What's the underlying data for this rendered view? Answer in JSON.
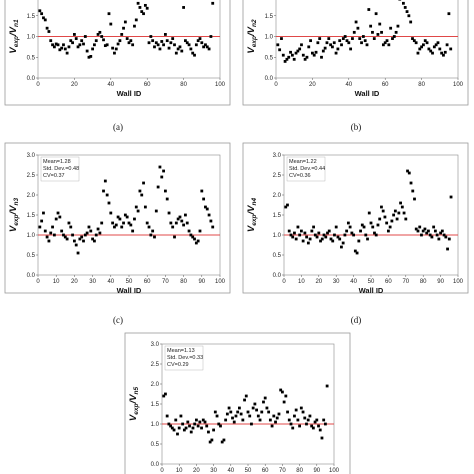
{
  "chart_data": [
    {
      "type": "scatter",
      "caption": "(a)",
      "xlabel": "Wall ID",
      "ylabel_main": "V",
      "ylabel_num_sub": "exp",
      "ylabel_den": "/V",
      "ylabel_den_sub": "n1",
      "stats": [],
      "xlim": [
        0,
        100
      ],
      "ylim": [
        0,
        2.0
      ],
      "xticks": [
        0,
        20,
        40,
        60,
        80,
        100
      ],
      "yticks": [
        0,
        0.5,
        1.0,
        1.5,
        2.0
      ],
      "ytick_labels": [
        "0.0",
        "0.5",
        "1.0",
        "1.5",
        "2.0"
      ],
      "reference_line": 1.0,
      "reference_color": "#e04848",
      "point_color": "#000000",
      "x": [
        1,
        2,
        3,
        4,
        5,
        6,
        7,
        8,
        9,
        10,
        11,
        12,
        13,
        14,
        15,
        16,
        17,
        18,
        19,
        20,
        21,
        22,
        23,
        24,
        25,
        26,
        27,
        28,
        29,
        30,
        31,
        32,
        33,
        34,
        35,
        36,
        37,
        38,
        39,
        40,
        41,
        42,
        43,
        44,
        45,
        46,
        47,
        48,
        49,
        50,
        51,
        52,
        53,
        54,
        55,
        56,
        57,
        58,
        59,
        60,
        61,
        62,
        63,
        64,
        65,
        66,
        67,
        68,
        69,
        70,
        71,
        72,
        73,
        74,
        75,
        76,
        77,
        78,
        79,
        80,
        81,
        82,
        83,
        84,
        85,
        86,
        87,
        88,
        89,
        90,
        91,
        92,
        93,
        94,
        95,
        96
      ],
      "y": [
        1.62,
        1.55,
        1.45,
        1.4,
        1.2,
        1.12,
        0.9,
        0.8,
        0.75,
        0.82,
        0.8,
        0.68,
        0.72,
        0.8,
        0.7,
        0.6,
        0.75,
        0.9,
        0.85,
        1.05,
        0.95,
        0.75,
        0.8,
        0.9,
        0.82,
        1.0,
        0.65,
        0.5,
        0.52,
        0.7,
        0.8,
        0.9,
        1.05,
        1.1,
        1.0,
        0.92,
        0.78,
        0.8,
        1.55,
        1.3,
        0.72,
        0.6,
        0.7,
        0.82,
        0.9,
        1.05,
        1.2,
        1.35,
        0.95,
        0.85,
        0.9,
        0.8,
        1.25,
        1.4,
        1.8,
        1.7,
        1.6,
        1.55,
        1.75,
        1.68,
        0.85,
        1.0,
        0.9,
        0.75,
        0.85,
        0.8,
        0.7,
        0.88,
        0.8,
        1.05,
        0.9,
        0.72,
        0.85,
        0.95,
        0.8,
        0.6,
        0.7,
        0.75,
        0.65,
        1.7,
        0.9,
        0.85,
        0.8,
        0.7,
        0.6,
        0.55,
        0.8,
        0.9,
        0.95,
        0.85,
        0.75,
        0.8,
        0.75,
        0.7,
        1.0,
        1.8
      ]
    },
    {
      "type": "scatter",
      "caption": "(b)",
      "xlabel": "Wall ID",
      "ylabel_main": "V",
      "ylabel_num_sub": "exp",
      "ylabel_den": "/V",
      "ylabel_den_sub": "n2",
      "stats": [],
      "xlim": [
        0,
        100
      ],
      "ylim": [
        0,
        2.0
      ],
      "xticks": [
        0,
        20,
        40,
        60,
        80,
        100
      ],
      "yticks": [
        0,
        0.5,
        1.0,
        1.5,
        2.0
      ],
      "ytick_labels": [
        "0.0",
        "0.5",
        "1.0",
        "1.5",
        "2.0"
      ],
      "reference_line": 1.0,
      "reference_color": "#e04848",
      "point_color": "#000000",
      "x": [
        1,
        2,
        3,
        4,
        5,
        6,
        7,
        8,
        9,
        10,
        11,
        12,
        13,
        14,
        15,
        16,
        17,
        18,
        19,
        20,
        21,
        22,
        23,
        24,
        25,
        26,
        27,
        28,
        29,
        30,
        31,
        32,
        33,
        34,
        35,
        36,
        37,
        38,
        39,
        40,
        41,
        42,
        43,
        44,
        45,
        46,
        47,
        48,
        49,
        50,
        51,
        52,
        53,
        54,
        55,
        56,
        57,
        58,
        59,
        60,
        61,
        62,
        63,
        64,
        65,
        66,
        67,
        68,
        69,
        70,
        71,
        72,
        73,
        74,
        75,
        76,
        77,
        78,
        79,
        80,
        81,
        82,
        83,
        84,
        85,
        86,
        87,
        88,
        89,
        90,
        91,
        92,
        93,
        94,
        95,
        96
      ],
      "y": [
        0.8,
        0.68,
        0.95,
        0.55,
        0.4,
        0.45,
        0.5,
        0.62,
        0.55,
        0.45,
        0.6,
        0.65,
        0.7,
        0.8,
        0.55,
        0.45,
        0.5,
        0.75,
        0.9,
        0.6,
        0.55,
        0.62,
        0.85,
        0.95,
        0.5,
        0.65,
        0.72,
        0.85,
        0.95,
        0.8,
        0.75,
        0.85,
        0.6,
        0.7,
        0.9,
        0.8,
        0.95,
        1.0,
        0.9,
        0.85,
        0.7,
        0.95,
        1.1,
        1.35,
        1.2,
        0.95,
        0.85,
        1.0,
        0.9,
        0.8,
        1.65,
        1.25,
        1.1,
        0.95,
        1.55,
        1.05,
        1.3,
        1.1,
        0.8,
        0.85,
        0.9,
        0.8,
        1.2,
        0.95,
        1.0,
        1.1,
        1.25,
        1.9,
        2.0,
        1.8,
        1.7,
        1.6,
        1.5,
        1.35,
        0.95,
        0.9,
        0.85,
        0.6,
        0.7,
        0.75,
        0.8,
        0.9,
        0.85,
        0.7,
        0.65,
        0.6,
        0.75,
        0.8,
        0.85,
        0.7,
        0.6,
        0.55,
        0.62,
        0.8,
        1.55,
        0.7
      ]
    },
    {
      "type": "scatter",
      "caption": "(c)",
      "xlabel": "Wall ID",
      "ylabel_main": "V",
      "ylabel_num_sub": "exp",
      "ylabel_den": "/V",
      "ylabel_den_sub": "n3",
      "stats": [
        "Mean=1.28",
        "Std. Dev.=0.48",
        "CV=0.37"
      ],
      "xlim": [
        0,
        100
      ],
      "ylim": [
        0,
        3.0
      ],
      "xticks": [
        0,
        10,
        20,
        30,
        40,
        50,
        60,
        70,
        80,
        90,
        100
      ],
      "yticks": [
        0,
        0.5,
        1.0,
        1.5,
        2.0,
        2.5,
        3.0
      ],
      "ytick_labels": [
        "0.0",
        "0.5",
        "1.0",
        "1.5",
        "2.0",
        "2.5",
        "3.0"
      ],
      "reference_line": 1.0,
      "reference_color": "#e04848",
      "point_color": "#000000",
      "x": [
        1,
        2,
        3,
        4,
        5,
        6,
        7,
        8,
        9,
        10,
        11,
        12,
        13,
        14,
        15,
        16,
        17,
        18,
        19,
        20,
        21,
        22,
        23,
        24,
        25,
        26,
        27,
        28,
        29,
        30,
        31,
        32,
        33,
        34,
        35,
        36,
        37,
        38,
        39,
        40,
        41,
        42,
        43,
        44,
        45,
        46,
        47,
        48,
        49,
        50,
        51,
        52,
        53,
        54,
        55,
        56,
        57,
        58,
        59,
        60,
        61,
        62,
        63,
        64,
        65,
        66,
        67,
        68,
        69,
        70,
        71,
        72,
        73,
        74,
        75,
        76,
        77,
        78,
        79,
        80,
        81,
        82,
        83,
        84,
        85,
        86,
        87,
        88,
        89,
        90,
        91,
        92,
        93,
        94,
        95,
        96
      ],
      "y": [
        1.2,
        1.35,
        1.55,
        1.1,
        0.95,
        0.85,
        1.05,
        1.2,
        1.0,
        1.4,
        1.55,
        1.45,
        1.1,
        1.0,
        0.95,
        0.9,
        1.3,
        1.2,
        1.0,
        0.85,
        0.75,
        0.55,
        0.9,
        0.95,
        0.85,
        1.0,
        1.05,
        1.2,
        1.1,
        0.9,
        0.85,
        1.0,
        1.15,
        1.05,
        1.3,
        2.1,
        2.35,
        2.0,
        1.8,
        1.55,
        1.3,
        1.2,
        1.25,
        1.45,
        1.4,
        1.2,
        1.3,
        1.5,
        1.45,
        1.3,
        1.25,
        1.1,
        1.4,
        1.7,
        1.6,
        2.1,
        2.0,
        2.3,
        1.7,
        1.3,
        1.2,
        1.0,
        1.1,
        0.95,
        1.6,
        2.2,
        2.7,
        2.45,
        2.6,
        2.1,
        1.9,
        1.55,
        1.3,
        1.2,
        0.95,
        1.3,
        1.4,
        1.45,
        1.35,
        1.25,
        1.5,
        1.3,
        1.1,
        1.0,
        0.95,
        0.9,
        0.8,
        0.85,
        1.1,
        2.1,
        1.9,
        1.7,
        1.65,
        1.5,
        1.35,
        1.2
      ]
    },
    {
      "type": "scatter",
      "caption": "(d)",
      "xlabel": "Wall ID",
      "ylabel_main": "V",
      "ylabel_num_sub": "exp",
      "ylabel_den": "/V",
      "ylabel_den_sub": "n4",
      "stats": [
        "Mean=1.22",
        "Std. Dev.=0.44",
        "CV=0.36"
      ],
      "xlim": [
        0,
        100
      ],
      "ylim": [
        0,
        3.0
      ],
      "xticks": [
        0,
        10,
        20,
        30,
        40,
        50,
        60,
        70,
        80,
        90,
        100
      ],
      "yticks": [
        0,
        0.5,
        1.0,
        1.5,
        2.0,
        2.5,
        3.0
      ],
      "ytick_labels": [
        "0.0",
        "0.5",
        "1.0",
        "1.5",
        "2.0",
        "2.5",
        "3.0"
      ],
      "reference_line": 1.0,
      "reference_color": "#e04848",
      "point_color": "#000000",
      "x": [
        1,
        2,
        3,
        4,
        5,
        6,
        7,
        8,
        9,
        10,
        11,
        12,
        13,
        14,
        15,
        16,
        17,
        18,
        19,
        20,
        21,
        22,
        23,
        24,
        25,
        26,
        27,
        28,
        29,
        30,
        31,
        32,
        33,
        34,
        35,
        36,
        37,
        38,
        39,
        40,
        41,
        42,
        43,
        44,
        45,
        46,
        47,
        48,
        49,
        50,
        51,
        52,
        53,
        54,
        55,
        56,
        57,
        58,
        59,
        60,
        61,
        62,
        63,
        64,
        65,
        66,
        67,
        68,
        69,
        70,
        71,
        72,
        73,
        74,
        75,
        76,
        77,
        78,
        79,
        80,
        81,
        82,
        83,
        84,
        85,
        86,
        87,
        88,
        89,
        90,
        91,
        92,
        93,
        94,
        95,
        96
      ],
      "y": [
        1.7,
        1.75,
        1.1,
        1.0,
        0.95,
        1.05,
        0.9,
        1.2,
        1.0,
        1.1,
        0.85,
        1.05,
        0.95,
        0.8,
        0.9,
        1.1,
        1.2,
        1.0,
        0.95,
        1.05,
        0.85,
        0.9,
        1.0,
        0.95,
        1.05,
        1.1,
        0.9,
        0.85,
        1.0,
        1.2,
        0.95,
        0.9,
        0.7,
        0.8,
        1.0,
        1.1,
        1.3,
        1.2,
        1.05,
        1.0,
        0.6,
        0.55,
        0.85,
        1.1,
        1.25,
        1.2,
        1.0,
        0.9,
        1.55,
        1.3,
        1.2,
        1.05,
        1.0,
        1.25,
        1.4,
        1.7,
        1.6,
        1.45,
        1.3,
        1.1,
        1.2,
        1.35,
        1.5,
        1.6,
        1.4,
        1.55,
        1.8,
        1.7,
        1.55,
        1.4,
        2.6,
        2.55,
        2.3,
        2.1,
        1.9,
        1.15,
        1.1,
        1.2,
        1.0,
        1.1,
        1.15,
        1.05,
        1.1,
        1.0,
        0.95,
        1.2,
        1.1,
        1.0,
        0.9,
        1.05,
        1.1,
        1.0,
        0.95,
        0.65,
        0.9,
        1.95
      ]
    },
    {
      "type": "scatter",
      "caption": "",
      "xlabel": "",
      "ylabel_main": "V",
      "ylabel_num_sub": "exp",
      "ylabel_den": "/V",
      "ylabel_den_sub": "n5",
      "stats": [
        "Mean=1.13",
        "Std. Dev.=0.33",
        "CV=0.29"
      ],
      "xlim": [
        0,
        100
      ],
      "ylim": [
        0,
        3.0
      ],
      "xticks": [
        0,
        10,
        20,
        30,
        40,
        50,
        60,
        70,
        80,
        90,
        100
      ],
      "yticks": [
        0,
        0.5,
        1.0,
        1.5,
        2.0,
        2.5,
        3.0
      ],
      "ytick_labels": [
        "0.0",
        "0.5",
        "1.0",
        "1.5",
        "2.0",
        "2.5",
        "3.0"
      ],
      "reference_line": 1.0,
      "reference_color": "#e04848",
      "point_color": "#000000",
      "x": [
        1,
        2,
        3,
        4,
        5,
        6,
        7,
        8,
        9,
        10,
        11,
        12,
        13,
        14,
        15,
        16,
        17,
        18,
        19,
        20,
        21,
        22,
        23,
        24,
        25,
        26,
        27,
        28,
        29,
        30,
        31,
        32,
        33,
        34,
        35,
        36,
        37,
        38,
        39,
        40,
        41,
        42,
        43,
        44,
        45,
        46,
        47,
        48,
        49,
        50,
        51,
        52,
        53,
        54,
        55,
        56,
        57,
        58,
        59,
        60,
        61,
        62,
        63,
        64,
        65,
        66,
        67,
        68,
        69,
        70,
        71,
        72,
        73,
        74,
        75,
        76,
        77,
        78,
        79,
        80,
        81,
        82,
        83,
        84,
        85,
        86,
        87,
        88,
        89,
        90,
        91,
        92,
        93,
        94,
        95,
        96
      ],
      "y": [
        1.7,
        1.75,
        1.2,
        1.0,
        0.95,
        0.9,
        0.85,
        1.1,
        0.75,
        0.9,
        1.2,
        1.0,
        0.85,
        0.9,
        1.05,
        0.95,
        0.8,
        0.9,
        1.0,
        1.1,
        0.95,
        1.05,
        0.9,
        1.1,
        1.05,
        0.95,
        0.8,
        0.55,
        0.6,
        0.85,
        1.3,
        1.2,
        1.0,
        0.95,
        0.55,
        0.6,
        1.1,
        1.25,
        1.4,
        1.3,
        1.15,
        1.05,
        1.2,
        1.3,
        1.4,
        1.25,
        1.1,
        1.6,
        1.7,
        1.3,
        1.2,
        1.0,
        1.4,
        1.5,
        1.35,
        1.2,
        1.1,
        1.3,
        1.55,
        1.65,
        1.4,
        1.3,
        1.1,
        0.95,
        1.2,
        1.05,
        1.15,
        1.25,
        1.85,
        1.8,
        1.55,
        1.7,
        1.3,
        1.1,
        1.0,
        0.9,
        1.2,
        1.35,
        1.1,
        0.95,
        1.4,
        1.3,
        1.15,
        1.0,
        1.1,
        1.2,
        0.95,
        0.9,
        1.05,
        1.1,
        0.95,
        0.85,
        0.65,
        1.1,
        1.0,
        1.95
      ]
    }
  ]
}
